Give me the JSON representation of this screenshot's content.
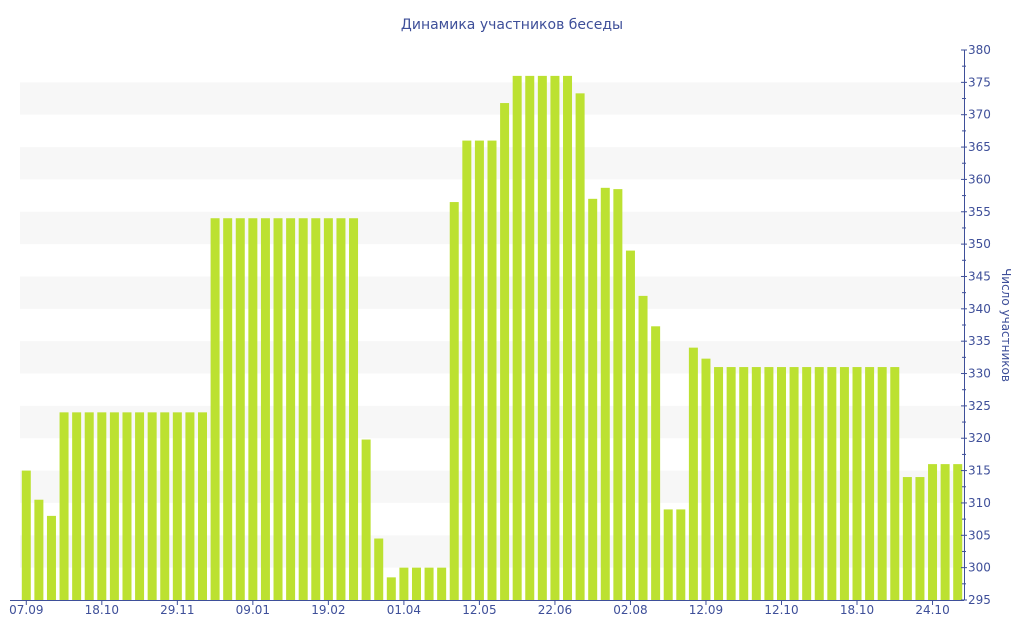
{
  "chart_data": {
    "type": "bar",
    "title": "Динамика участников беседы",
    "xlabel": "",
    "ylabel": "Число участников",
    "ylim": [
      295,
      380
    ],
    "y_ticks": [
      295,
      300,
      305,
      310,
      315,
      320,
      325,
      330,
      335,
      340,
      345,
      350,
      355,
      360,
      365,
      370,
      375,
      380
    ],
    "y_axis_position": "right",
    "grid": "alternating horizontal bands",
    "legend": "none",
    "colors": {
      "bar": "#bce131",
      "axis": "#3e4f99",
      "band": "#f7f7f7"
    },
    "x_tick_labels": [
      {
        "index": 0,
        "label": "07.09"
      },
      {
        "index": 6,
        "label": "18.10"
      },
      {
        "index": 12,
        "label": "29.11"
      },
      {
        "index": 18,
        "label": "09.01"
      },
      {
        "index": 24,
        "label": "19.02"
      },
      {
        "index": 30,
        "label": "01.04"
      },
      {
        "index": 36,
        "label": "12.05"
      },
      {
        "index": 42,
        "label": "22.06"
      },
      {
        "index": 48,
        "label": "02.08"
      },
      {
        "index": 54,
        "label": "12.09"
      },
      {
        "index": 60,
        "label": "12.10"
      },
      {
        "index": 66,
        "label": "18.10"
      },
      {
        "index": 72,
        "label": "24.10"
      }
    ],
    "values": [
      315,
      310.5,
      308,
      324,
      324,
      324,
      324,
      324,
      324,
      324,
      324,
      324,
      324,
      324,
      324,
      354,
      354,
      354,
      354,
      354,
      354,
      354,
      354,
      354,
      354,
      354,
      354,
      319.8,
      304.5,
      298.5,
      300,
      300,
      300,
      300,
      356.5,
      366,
      366,
      366,
      371.8,
      376,
      376,
      376,
      376,
      376,
      373.3,
      357,
      358.7,
      358.5,
      349,
      342,
      337.3,
      309,
      309,
      334,
      332.3,
      331,
      331,
      331,
      331,
      331,
      331,
      331,
      331,
      331,
      331,
      331,
      331,
      331,
      331,
      331,
      314,
      314,
      316,
      316,
      316
    ]
  }
}
